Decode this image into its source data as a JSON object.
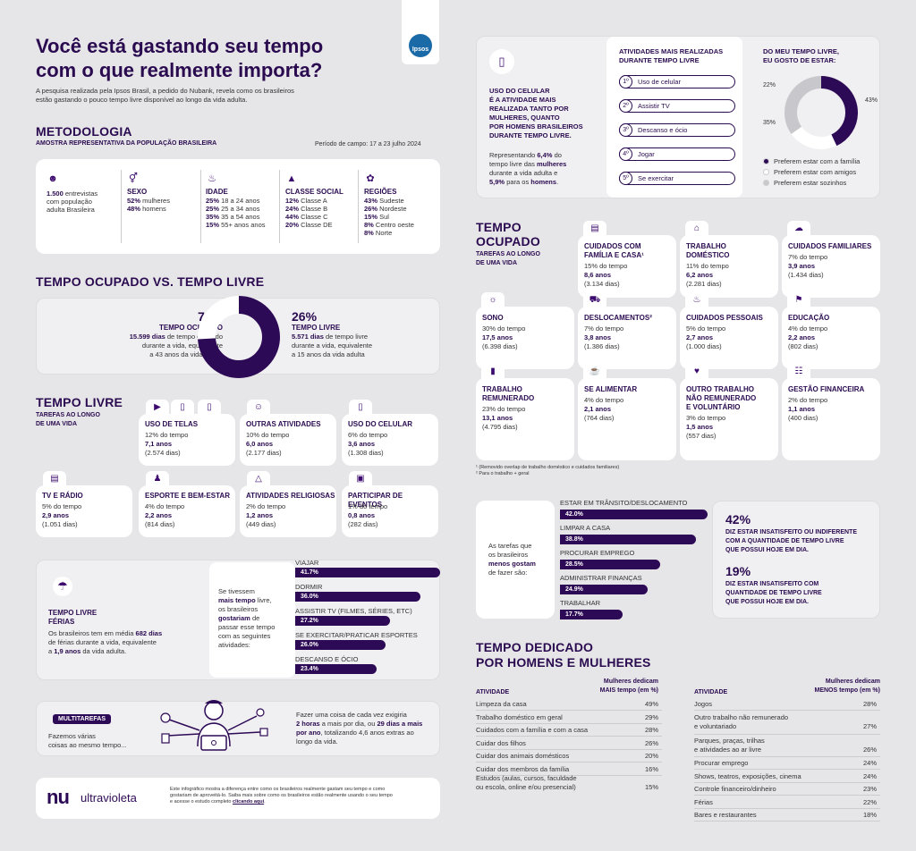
{
  "header": {
    "title_line1": "Você está gastando seu tempo",
    "title_line2": "com o que realmente importa?",
    "intro_line1": "A pesquisa realizada pela Ipsos Brasil, a pedido do Nubank, revela como os brasileiros",
    "intro_line2": "estão gastando o pouco tempo livre disponível ao longo da vida adulta.",
    "ipsos_logo": "Ipsos"
  },
  "metodologia": {
    "title": "METODOLOGIA",
    "subtitle": "AMOSTRA REPRESENTATIVA DA POPULAÇÃO BRASILEIRA",
    "periodo": "Período de campo: 17 a 23 julho 2024",
    "col1": {
      "b": "1.500",
      "t1": " entrevistas",
      "t2": "com população",
      "t3": "adulta Brasileira"
    },
    "sexo": {
      "title": "SEXO",
      "r1b": "52%",
      "r1": " mulheres",
      "r2b": "48%",
      "r2": " homens"
    },
    "idade": {
      "title": "IDADE",
      "rows": [
        [
          "25%",
          " 18 a 24 anos"
        ],
        [
          "25%",
          " 25 a 34 anos"
        ],
        [
          "35%",
          " 35 a 54 anos"
        ],
        [
          "15%",
          " 55+ anos anos"
        ]
      ]
    },
    "classe": {
      "title": "CLASSE SOCIAL",
      "rows": [
        [
          "12%",
          " Classe A"
        ],
        [
          "24%",
          " Classe B"
        ],
        [
          "44%",
          " Classe C"
        ],
        [
          "20%",
          " Classe DE"
        ]
      ]
    },
    "regioes": {
      "title": "REGIÕES",
      "rows": [
        [
          "43%",
          " Sudeste"
        ],
        [
          "26%",
          " Nordeste"
        ],
        [
          "15%",
          " Sul"
        ],
        [
          "8%",
          " Centro oeste"
        ],
        [
          "8%",
          " Norte"
        ]
      ]
    }
  },
  "ocupado_livre": {
    "title": "TEMPO OCUPADO VS. TEMPO LIVRE",
    "ocupado_pct": "74%",
    "ocupado_label": "TEMPO OCUPADO",
    "ocupado_l1b": "15.599 dias",
    "ocupado_l1": " de tempo ocupado",
    "ocupado_l2": "durante a vida, equivalente",
    "ocupado_l3": "a 43 anos da vida adulta",
    "livre_pct": "26%",
    "livre_label": "TEMPO LIVRE",
    "livre_l1b": "5.571 dias",
    "livre_l1": " de tempo livre",
    "livre_l2": "durante a vida, equivalente",
    "livre_l3": "a 15 anos da vida adulta",
    "donut_fraction": 0.74
  },
  "tempo_livre": {
    "title": "TEMPO LIVRE",
    "subtitle1": "TAREFAS AO LONGO",
    "subtitle2": "DE UMA VIDA",
    "cards": [
      {
        "title": "USO DE TELAS",
        "pct": "12%",
        "anos": "7,1 anos",
        "dias": "(2.574 dias)"
      },
      {
        "title": "OUTRAS ATIVIDADES",
        "pct": "10%",
        "anos": "6,0 anos",
        "dias": "(2.177 dias)"
      },
      {
        "title": "USO DO CELULAR",
        "pct": "6%",
        "anos": "3,6 anos",
        "dias": "(1.308 dias)"
      },
      {
        "title": "TV E RÁDIO",
        "pct": "5%",
        "anos": "2,9 anos",
        "dias": "(1.051 dias)"
      },
      {
        "title": "ESPORTE E BEM-ESTAR",
        "pct": "4%",
        "anos": "2,2 anos",
        "dias": "(814 dias)"
      },
      {
        "title": "ATIVIDADES RELIGIOSAS",
        "pct": "2%",
        "anos": "1,2 anos",
        "dias": "(449 dias)"
      },
      {
        "title": "PARTICIPAR DE EVENTOS",
        "pct": "1%",
        "anos": "0,8 anos",
        "dias": "(282 dias)"
      }
    ],
    "do_tempo": " do tempo"
  },
  "ferias": {
    "title1": "TEMPO LIVRE",
    "title2": "FÉRIAS",
    "l1a": "Os brasileiros tem em média ",
    "l1b": "682 dias",
    "l2": "de férias durante a vida, equivalente",
    "l3a": "a ",
    "l3b": "1,9 anos",
    "l3c": " da vida adulta.",
    "q1": "Se tivessem",
    "q2b": "mais tempo",
    "q2": " livre,",
    "q3": "os brasileiros",
    "q4b": "gostariam",
    "q4": " de",
    "q5": "passar esse tempo",
    "q6": "com as seguintes",
    "q7": "atividades:"
  },
  "ferias_chart": {
    "type": "bar",
    "categories": [
      "VIAJAR",
      "DORMIR",
      "ASSISTIR TV (FILMES, SÉRIES, ETC)",
      "SE EXERCITAR/PRATICAR ESPORTES",
      "DESCANSO E ÓCIO"
    ],
    "values": [
      41.7,
      36.0,
      27.2,
      26.0,
      23.4
    ],
    "labels": [
      "41.7%",
      "36.0%",
      "27.2%",
      "26.0%",
      "23.4%"
    ]
  },
  "multitarefas": {
    "badge": "MULTITAREFAS",
    "l1": "Fazemos várias",
    "l2": "coisas ao mesmo tempo...",
    "r1": "Fazer uma coisa de cada vez exigiria",
    "r2b": "2 horas",
    "r2": " a mais por dia, ou ",
    "r2c": "29 dias a mais",
    "r3b": "por ano",
    "r3": ", totalizando 4,6 anos extras ao",
    "r4": "longo da vida."
  },
  "footer": {
    "brand": "ultravioleta",
    "l1": "Este infográfico mostra a diferença entre como os brasileiros realmente gastam seu tempo e como",
    "l2": "gostariam de aproveitá-lo. Saiba mais sobre como os brasileiros estão realmente usando o seu tempo",
    "l3a": "e acesse o estudo completo ",
    "l3b": "clicando aqui",
    "l3c": "."
  },
  "celular": {
    "t1": "USO DO CELULAR",
    "t2": "É A ATIVIDADE MAIS",
    "t3": "REALIZADA TANTO POR",
    "t4": "MULHERES, QUANTO",
    "t5": "POR HOMENS BRASILEIROS",
    "t6": "DURANTE TEMPO LIVRE.",
    "b1a": "Representando ",
    "b1b": "6,4%",
    "b1c": " do",
    "b2": "tempo livre das ",
    "b2b": "mulheres",
    "b3": "durante a vida adulta e",
    "b4b": "5,9%",
    "b4": " para os ",
    "b4c": "homens",
    "b4d": ".",
    "list_title1": "ATIVIDADES MAIS REALIZADAS",
    "list_title2": "DURANTE TEMPO LIVRE",
    "list": [
      {
        "n": "1º",
        "label": "Uso de celular"
      },
      {
        "n": "2º",
        "label": "Assistir TV"
      },
      {
        "n": "3º",
        "label": "Descanso e ócio"
      },
      {
        "n": "4º",
        "label": "Jogar"
      },
      {
        "n": "5º",
        "label": "Se exercitar"
      }
    ],
    "pie_title1": "DO MEU TEMPO LIVRE,",
    "pie_title2": "EU GOSTO DE ESTAR:",
    "legend": [
      "Preferem estar com a família",
      "Preferem estar com amigos",
      "Preferem estar sozinhos"
    ]
  },
  "companhia_chart": {
    "type": "pie",
    "values": [
      43,
      22,
      35
    ],
    "labels": [
      "43%",
      "22%",
      "35%"
    ],
    "colors": [
      "#2d0a55",
      "#ffffff",
      "#c8c8cc"
    ]
  },
  "tempo_ocupado": {
    "title1": "TEMPO",
    "title2": "OCUPADO",
    "sub1": "TAREFAS AO LONGO",
    "sub2": "DE UMA VIDA",
    "cards": [
      {
        "t1": "CUIDADOS COM",
        "t2": "FAMÍLIA E CASA¹",
        "pct": "15%",
        "anos": "8,6 anos",
        "dias": "(3.134 dias)"
      },
      {
        "t1": "TRABALHO",
        "t2": "DOMÉSTICO",
        "pct": "11%",
        "anos": "6,2 anos",
        "dias": "(2.281 dias)"
      },
      {
        "t1": "CUIDADOS FAMILIARES",
        "t2": "",
        "pct": "7%",
        "anos": "3,9 anos",
        "dias": "(1.434 dias)"
      },
      {
        "t1": "SONO",
        "t2": "",
        "pct": "30%",
        "anos": "17,5 anos",
        "dias": "(6.398 dias)"
      },
      {
        "t1": "DESLOCAMENTOS²",
        "t2": "",
        "pct": "7%",
        "anos": "3,8 anos",
        "dias": "(1.386 dias)"
      },
      {
        "t1": "CUIDADOS PESSOAIS",
        "t2": "",
        "pct": "5%",
        "anos": "2,7 anos",
        "dias": "(1.000 dias)"
      },
      {
        "t1": "EDUCAÇÃO",
        "t2": "",
        "pct": "4%",
        "anos": "2,2 anos",
        "dias": "(802 dias)"
      },
      {
        "t1": "TRABALHO",
        "t2": "REMUNERADO",
        "pct": "23%",
        "anos": "13,1 anos",
        "dias": "(4.795 dias)"
      },
      {
        "t1": "SE ALIMENTAR",
        "t2": "",
        "pct": "4%",
        "anos": "2,1 anos",
        "dias": "(764 dias)"
      },
      {
        "t1": "OUTRO TRABALHO",
        "t2": "NÃO REMUNERADO",
        "t3": "E VOLUNTÁRIO",
        "pct": "3%",
        "anos": "1,5 anos",
        "dias": "(557 dias)"
      },
      {
        "t1": "GESTÃO FINANCEIRA",
        "t2": "",
        "pct": "2%",
        "anos": "1,1 anos",
        "dias": "(400 dias)"
      }
    ],
    "note1": "¹ (Removido overlap de trabalho doméstico e cuidados familiares)",
    "note2": "² Para o trabalho + geral"
  },
  "menos_gostam": {
    "l1": "As tarefas que",
    "l2": "os brasileiros",
    "l3b": "menos gostam",
    "l4": "de fazer são:"
  },
  "menos_chart": {
    "type": "bar",
    "categories": [
      "ESTAR EM TRÂNSITO/DESLOCAMENTO",
      "LIMPAR A CASA",
      "PROCURAR EMPREGO",
      "ADMINISTRAR FINANÇAS",
      "TRABALHAR"
    ],
    "values": [
      42.0,
      38.8,
      28.5,
      24.9,
      17.7
    ],
    "labels": [
      "42.0%",
      "38.8%",
      "28.5%",
      "24.9%",
      "17.7%"
    ]
  },
  "insatisfeito": {
    "p1": "42%",
    "t1a": "DIZ ESTAR INSATISFEITO OU INDIFERENTE",
    "t1b": "COM A QUANTIDADE DE TEMPO LIVRE",
    "t1c": "QUE POSSUI HOJE EM DIA.",
    "p2": "19%",
    "t2a": "DIZ ESTAR INSATISFEITO COM",
    "t2b": "QUANTIDADE DE TEMPO LIVRE",
    "t2c": "QUE POSSUI HOJE EM DIA."
  },
  "dedicado": {
    "title1": "TEMPO DEDICADO",
    "title2": "POR HOMENS E MULHERES",
    "left_col": "ATIVIDADE",
    "left_h1": "Mulheres dedicam",
    "left_h2": "MAIS tempo (em %)",
    "left_rows": [
      [
        "Limpeza da casa",
        "49%"
      ],
      [
        "Trabalho doméstico em geral",
        "29%"
      ],
      [
        "Cuidados com a família e com a casa",
        "28%"
      ],
      [
        "Cuidar dos filhos",
        "26%"
      ],
      [
        "Cuidar dos animais domésticos",
        "20%"
      ],
      [
        "Cuidar dos membros da família",
        "16%"
      ]
    ],
    "left_last1": "Estudos (aulas, cursos, faculdade",
    "left_last2": "ou escola, online e/ou presencial)",
    "left_last_v": "15%",
    "right_col": "ATIVIDADE",
    "right_h1": "Mulheres dedicam",
    "right_h2": "MENOS tempo (em %)",
    "right_rows": [
      [
        "Jogos",
        "28%"
      ]
    ],
    "r2a": "Outro trabalho não remunerado",
    "r2b": "e voluntariado",
    "r2v": "27%",
    "r3a": "Parques, praças, trilhas",
    "r3b": "e atividades ao ar livre",
    "r3v": "26%",
    "right_rows2": [
      [
        "Procurar emprego",
        "24%"
      ],
      [
        "Shows, teatros, exposições, cinema",
        "24%"
      ],
      [
        "Controle financeiro/dinheiro",
        "23%"
      ],
      [
        "Férias",
        "22%"
      ],
      [
        "Bares e restaurantes",
        "18%"
      ]
    ]
  }
}
